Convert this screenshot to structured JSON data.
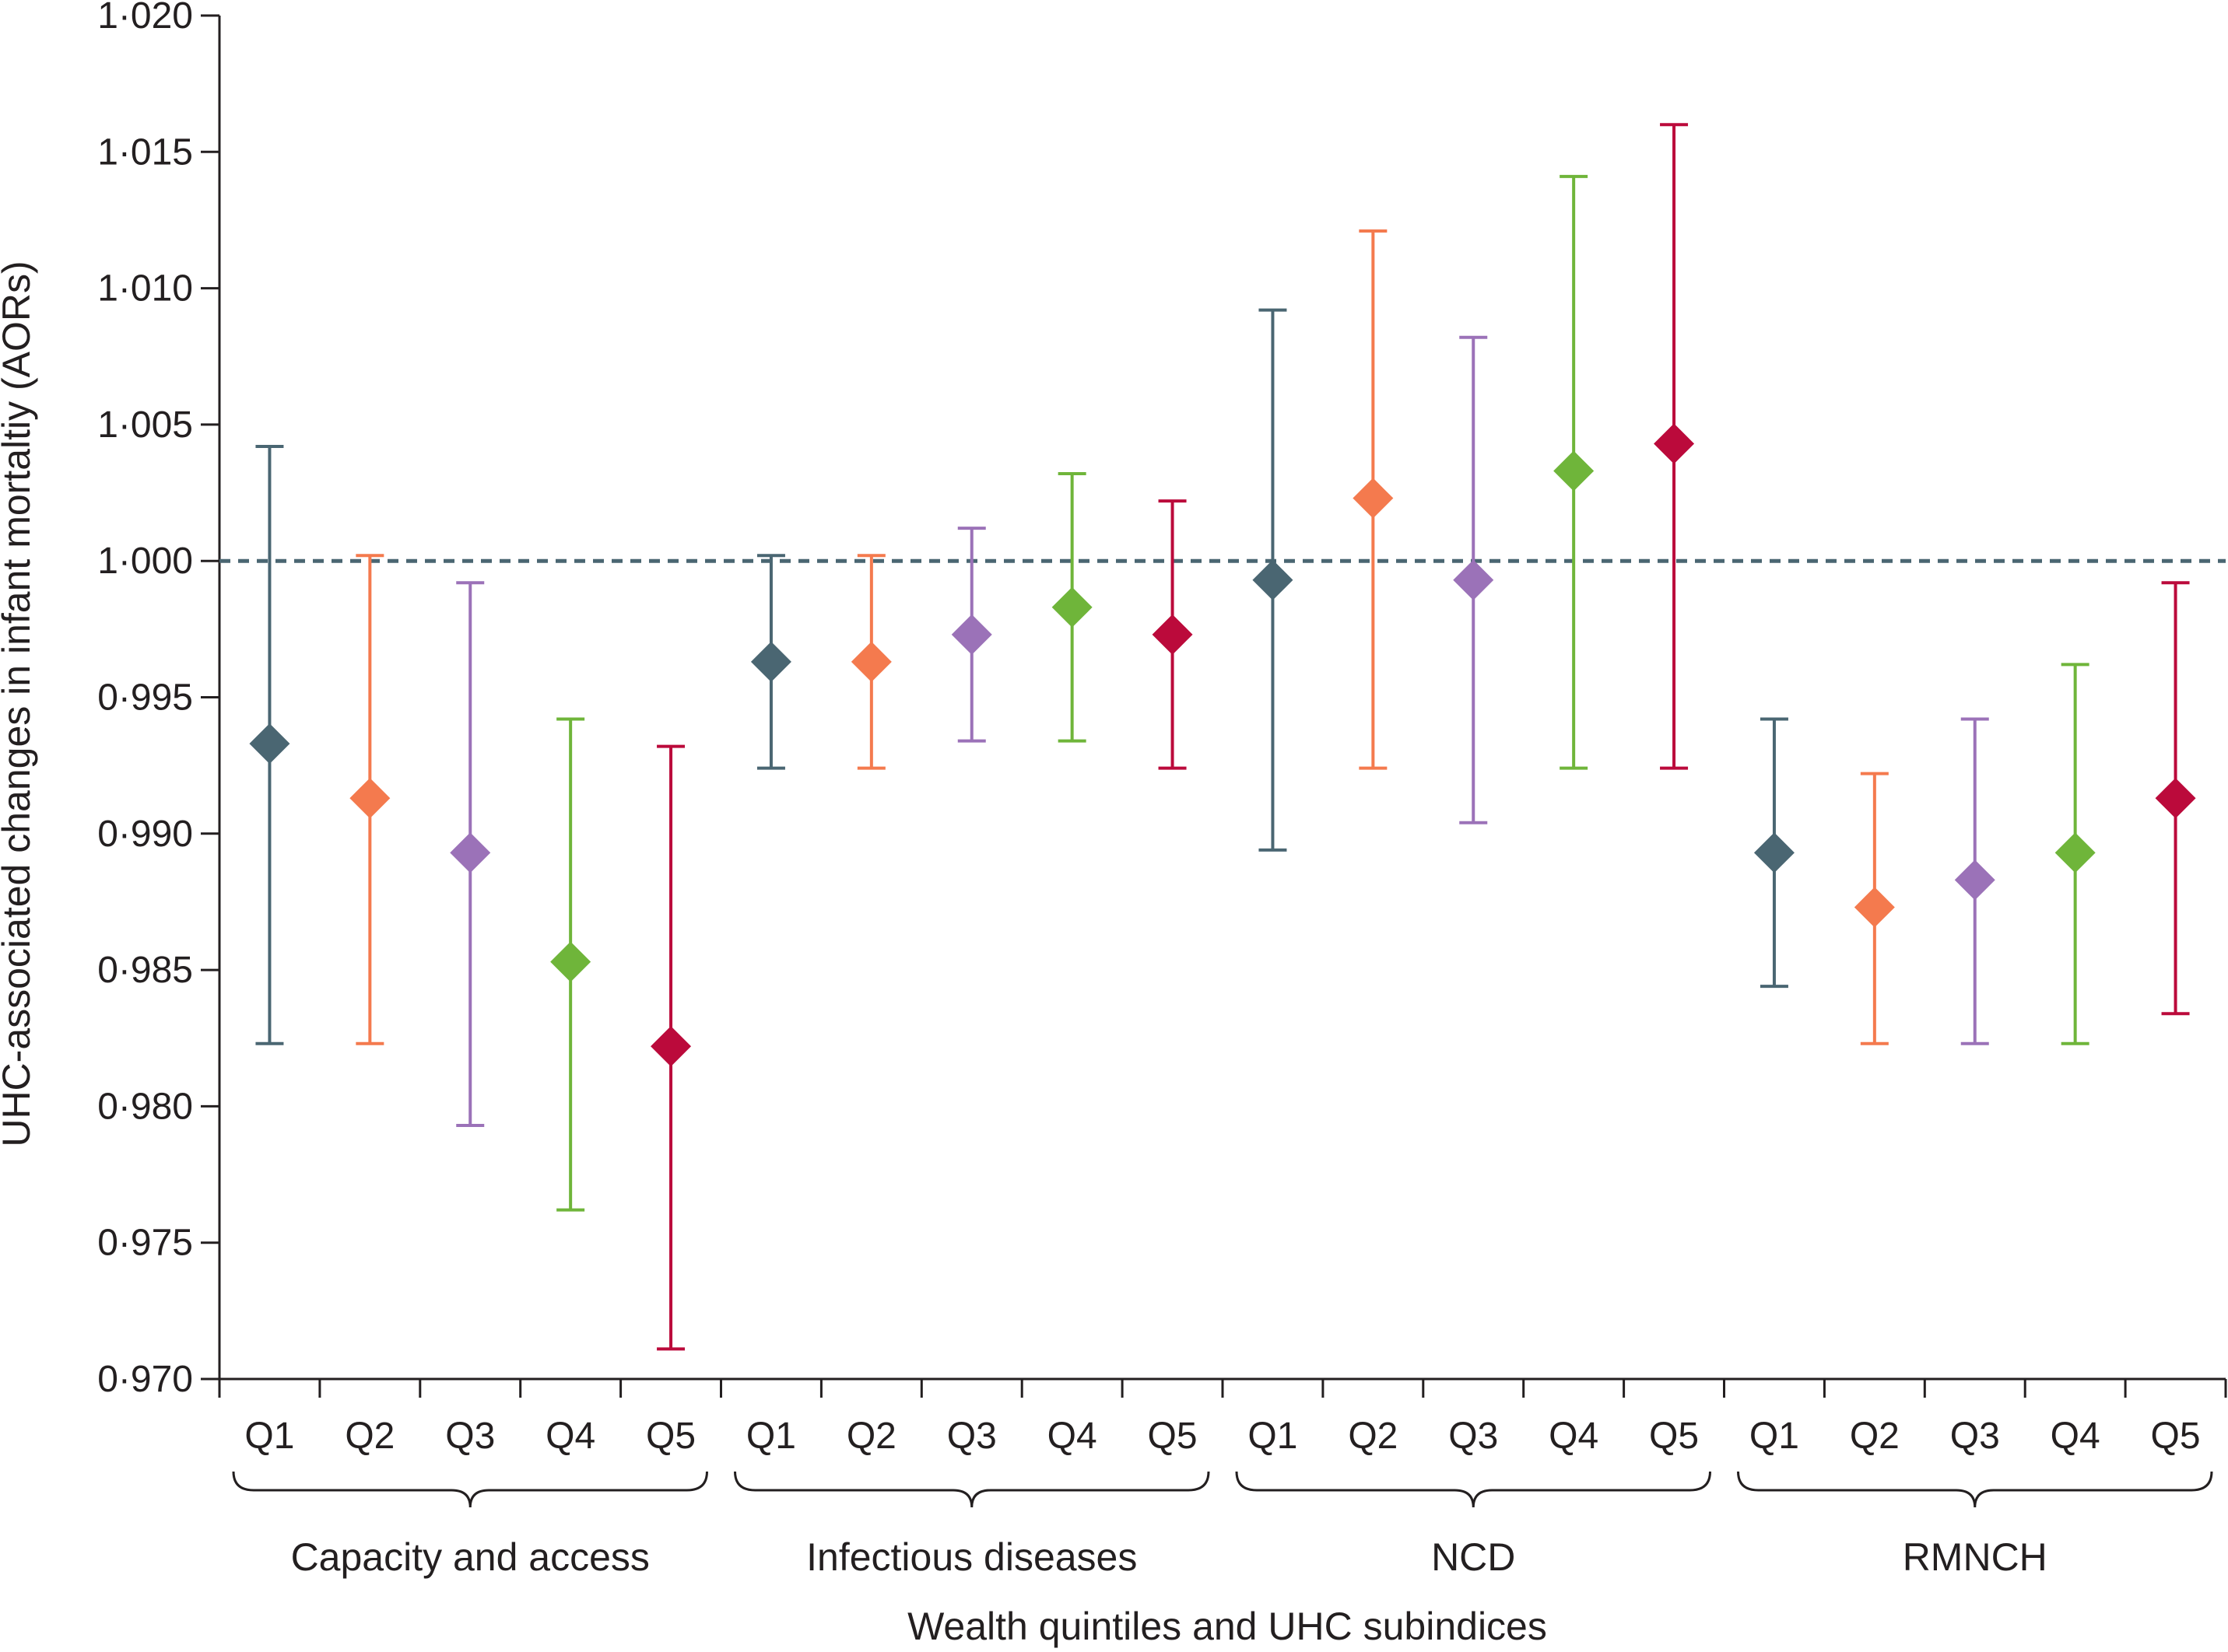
{
  "chart_data": {
    "type": "scatter",
    "subtype": "point-estimate-with-95ci",
    "ylabel": "UHC-associated changes in infant mortaltiy (AORs)",
    "xlabel": "Wealth quintiles and UHC subindices",
    "ylim": [
      0.97,
      1.02
    ],
    "yticks": [
      "0·970",
      "0·975",
      "0·980",
      "0·985",
      "0·990",
      "0·995",
      "1·000",
      "1·005",
      "1·010",
      "1·015",
      "1·020"
    ],
    "reference_line": 1.0,
    "quintiles": [
      "Q1",
      "Q2",
      "Q3",
      "Q4",
      "Q5"
    ],
    "colors": {
      "Q1": "#4a6672",
      "Q2": "#f47a4e",
      "Q3": "#9b72b8",
      "Q4": "#6fb53a",
      "Q5": "#bb0a3b",
      "reference": "#4a6672",
      "axis": "#231f20"
    },
    "groups": [
      {
        "name": "Capacity and access",
        "points": [
          {
            "q": "Q1",
            "aor": 0.9933,
            "lower": 0.9823,
            "upper": 1.0042
          },
          {
            "q": "Q2",
            "aor": 0.9913,
            "lower": 0.9823,
            "upper": 1.0002
          },
          {
            "q": "Q3",
            "aor": 0.9893,
            "lower": 0.9793,
            "upper": 0.9992
          },
          {
            "q": "Q4",
            "aor": 0.9853,
            "lower": 0.9762,
            "upper": 0.9942
          },
          {
            "q": "Q5",
            "aor": 0.9822,
            "lower": 0.9711,
            "upper": 0.9932
          }
        ]
      },
      {
        "name": "Infectious diseases",
        "points": [
          {
            "q": "Q1",
            "aor": 0.9963,
            "lower": 0.9924,
            "upper": 1.0002
          },
          {
            "q": "Q2",
            "aor": 0.9963,
            "lower": 0.9924,
            "upper": 1.0002
          },
          {
            "q": "Q3",
            "aor": 0.9973,
            "lower": 0.9934,
            "upper": 1.0012
          },
          {
            "q": "Q4",
            "aor": 0.9983,
            "lower": 0.9934,
            "upper": 1.0032
          },
          {
            "q": "Q5",
            "aor": 0.9973,
            "lower": 0.9924,
            "upper": 1.0022
          }
        ]
      },
      {
        "name": "NCD",
        "points": [
          {
            "q": "Q1",
            "aor": 0.9993,
            "lower": 0.9894,
            "upper": 1.0092
          },
          {
            "q": "Q2",
            "aor": 1.0023,
            "lower": 0.9924,
            "upper": 1.0121
          },
          {
            "q": "Q3",
            "aor": 0.9993,
            "lower": 0.9904,
            "upper": 1.0082
          },
          {
            "q": "Q4",
            "aor": 1.0033,
            "lower": 0.9924,
            "upper": 1.0141
          },
          {
            "q": "Q5",
            "aor": 1.0043,
            "lower": 0.9924,
            "upper": 1.016
          }
        ]
      },
      {
        "name": "RMNCH",
        "points": [
          {
            "q": "Q1",
            "aor": 0.9893,
            "lower": 0.9844,
            "upper": 0.9942
          },
          {
            "q": "Q2",
            "aor": 0.9873,
            "lower": 0.9823,
            "upper": 0.9922
          },
          {
            "q": "Q3",
            "aor": 0.9883,
            "lower": 0.9823,
            "upper": 0.9942
          },
          {
            "q": "Q4",
            "aor": 0.9893,
            "lower": 0.9823,
            "upper": 0.9962
          },
          {
            "q": "Q5",
            "aor": 0.9913,
            "lower": 0.9834,
            "upper": 0.9992
          }
        ]
      }
    ]
  }
}
